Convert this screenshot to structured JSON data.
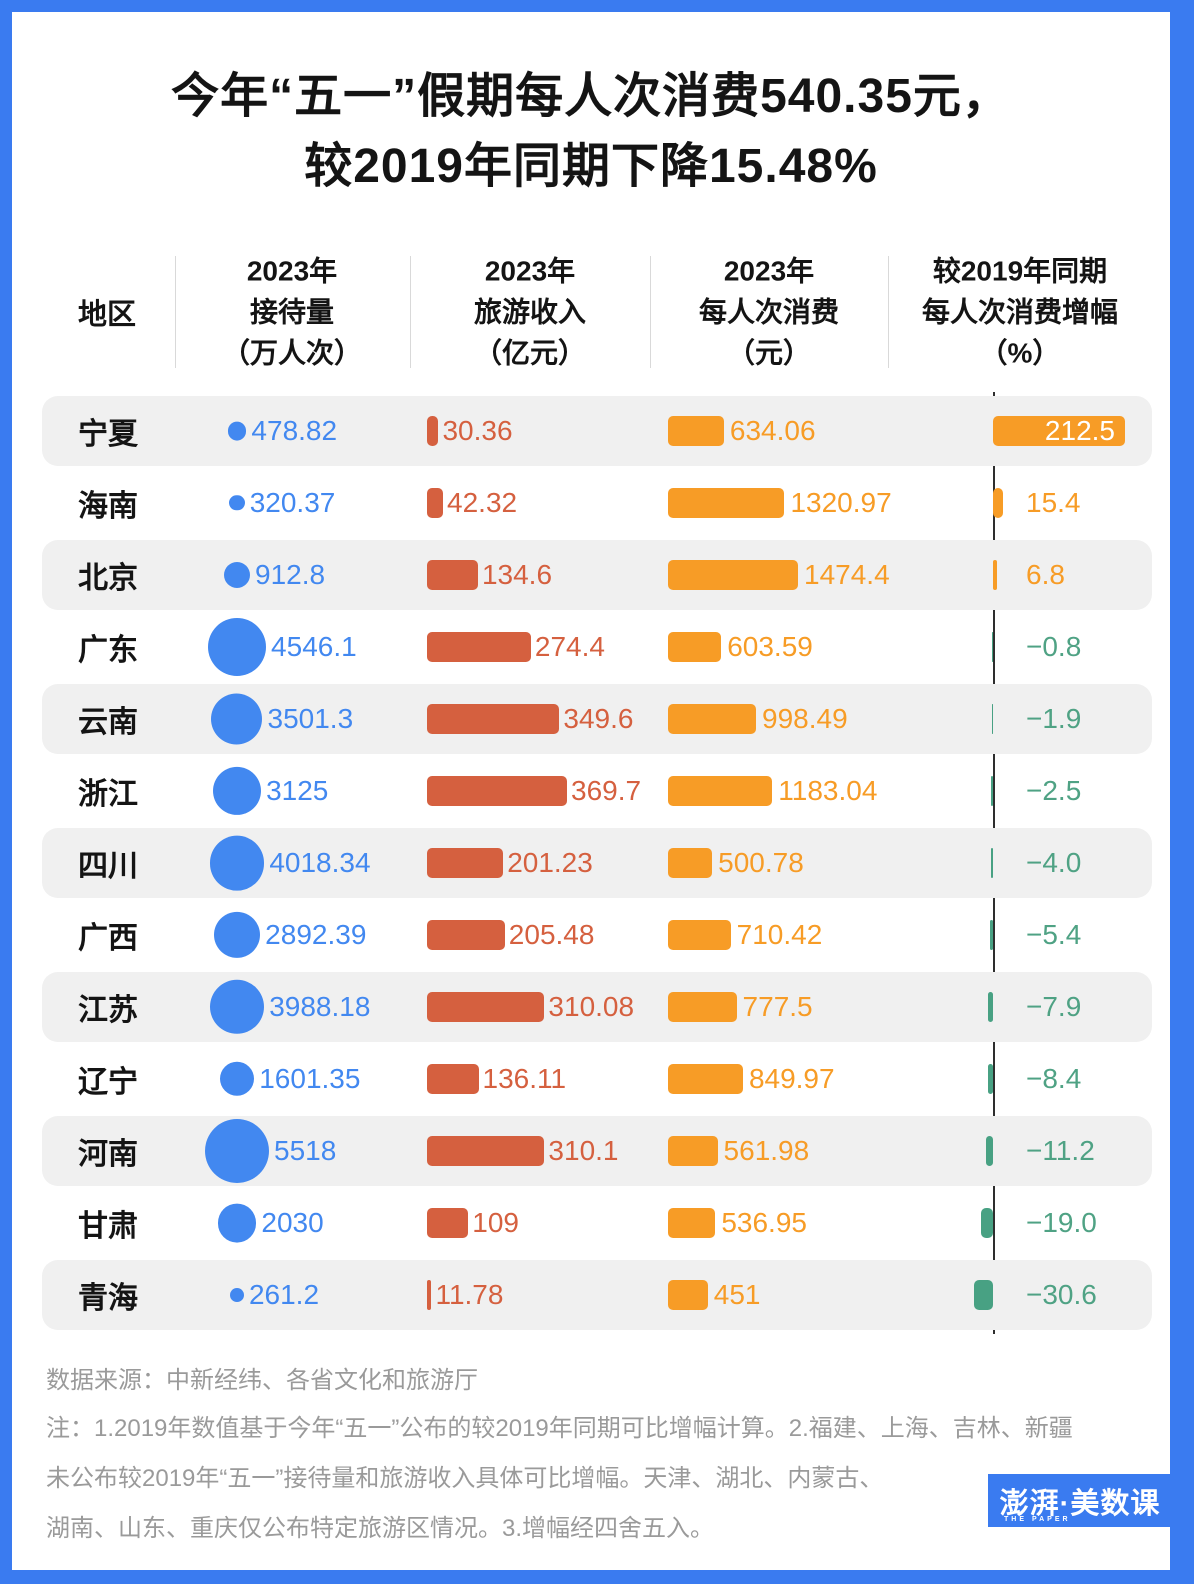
{
  "title": {
    "line1": "今年“五一”假期每人次消费540.35元，",
    "line2": "较2019年同期下降15.48%"
  },
  "table": {
    "region_header": "地区",
    "columns": [
      {
        "line1": "2023年",
        "line2": "接待量",
        "line3": "（万人次）"
      },
      {
        "line1": "2023年",
        "line2": "旅游收入",
        "line3": "（亿元）"
      },
      {
        "line1": "2023年",
        "line2": "每人次消费",
        "line3": "（元）"
      },
      {
        "line1": "较2019年同期",
        "line2": "每人次消费增幅",
        "line3": "（%）"
      }
    ],
    "rows": [
      {
        "region": "宁夏",
        "reception": 478.82,
        "reception_label": "478.82",
        "revenue": 30.36,
        "revenue_label": "30.36",
        "spend": 634.06,
        "spend_label": "634.06",
        "growth": 212.5,
        "growth_label": "212.5"
      },
      {
        "region": "海南",
        "reception": 320.37,
        "reception_label": "320.37",
        "revenue": 42.32,
        "revenue_label": "42.32",
        "spend": 1320.97,
        "spend_label": "1320.97",
        "growth": 15.4,
        "growth_label": "15.4"
      },
      {
        "region": "北京",
        "reception": 912.8,
        "reception_label": "912.8",
        "revenue": 134.6,
        "revenue_label": "134.6",
        "spend": 1474.4,
        "spend_label": "1474.4",
        "growth": 6.8,
        "growth_label": "6.8"
      },
      {
        "region": "广东",
        "reception": 4546.1,
        "reception_label": "4546.1",
        "revenue": 274.4,
        "revenue_label": "274.4",
        "spend": 603.59,
        "spend_label": "603.59",
        "growth": -0.8,
        "growth_label": "−0.8"
      },
      {
        "region": "云南",
        "reception": 3501.3,
        "reception_label": "3501.3",
        "revenue": 349.6,
        "revenue_label": "349.6",
        "spend": 998.49,
        "spend_label": "998.49",
        "growth": -1.9,
        "growth_label": "−1.9"
      },
      {
        "region": "浙江",
        "reception": 3125,
        "reception_label": "3125",
        "revenue": 369.7,
        "revenue_label": "369.7",
        "spend": 1183.04,
        "spend_label": "1183.04",
        "growth": -2.5,
        "growth_label": "−2.5"
      },
      {
        "region": "四川",
        "reception": 4018.34,
        "reception_label": "4018.34",
        "revenue": 201.23,
        "revenue_label": "201.23",
        "spend": 500.78,
        "spend_label": "500.78",
        "growth": -4.0,
        "growth_label": "−4.0"
      },
      {
        "region": "广西",
        "reception": 2892.39,
        "reception_label": "2892.39",
        "revenue": 205.48,
        "revenue_label": "205.48",
        "spend": 710.42,
        "spend_label": "710.42",
        "growth": -5.4,
        "growth_label": "−5.4"
      },
      {
        "region": "江苏",
        "reception": 3988.18,
        "reception_label": "3988.18",
        "revenue": 310.08,
        "revenue_label": "310.08",
        "spend": 777.5,
        "spend_label": "777.5",
        "growth": -7.9,
        "growth_label": "−7.9"
      },
      {
        "region": "辽宁",
        "reception": 1601.35,
        "reception_label": "1601.35",
        "revenue": 136.11,
        "revenue_label": "136.11",
        "spend": 849.97,
        "spend_label": "849.97",
        "growth": -8.4,
        "growth_label": "−8.4"
      },
      {
        "region": "河南",
        "reception": 5518,
        "reception_label": "5518",
        "revenue": 310.1,
        "revenue_label": "310.1",
        "spend": 561.98,
        "spend_label": "561.98",
        "growth": -11.2,
        "growth_label": "−11.2"
      },
      {
        "region": "甘肃",
        "reception": 2030,
        "reception_label": "2030",
        "revenue": 109,
        "revenue_label": "109",
        "spend": 536.95,
        "spend_label": "536.95",
        "growth": -19.0,
        "growth_label": "−19.0"
      },
      {
        "region": "青海",
        "reception": 261.2,
        "reception_label": "261.2",
        "revenue": 11.78,
        "revenue_label": "11.78",
        "spend": 451,
        "spend_label": "451",
        "growth": -30.6,
        "growth_label": "−30.6"
      }
    ]
  },
  "footer": {
    "source": "数据来源：中新经纬、各省文化和旅游厅",
    "note_line1": "注：1.2019年数值基于今年“五一”公布的较2019年同期可比增幅计算。2.福建、上海、吉林、新疆",
    "note_line2": "未公布较2019年“五一”接待量和旅游收入具体可比增幅。天津、湖北、内蒙古、",
    "note_line3": "湖南、山东、重庆仅公布特定旅游区情况。3.增幅经四舍五入。"
  },
  "logo": {
    "cn": "澎湃·美数课",
    "en": "THE PAPER"
  },
  "colors": {
    "frame_blue": "#3A7BF0",
    "circle_blue": "#4288F0",
    "revenue_red": "#D5603F",
    "spend_orange": "#F79C26",
    "growth_green": "#48A183",
    "growth_green_text": "#4FA284",
    "band_gray": "#F0F0F0",
    "axis_dark": "#2e2e2e",
    "note_gray": "#9A9A9A"
  },
  "chart_data": {
    "type": "bar",
    "title": "今年“五一”假期每人次消费540.35元，较2019年同期下降15.48%",
    "categories": [
      "宁夏",
      "海南",
      "北京",
      "广东",
      "云南",
      "浙江",
      "四川",
      "广西",
      "江苏",
      "辽宁",
      "河南",
      "甘肃",
      "青海"
    ],
    "series": [
      {
        "name": "2023年接待量（万人次）",
        "encoding": "circle-area",
        "values": [
          478.82,
          320.37,
          912.8,
          4546.1,
          3501.3,
          3125,
          4018.34,
          2892.39,
          3988.18,
          1601.35,
          5518,
          2030,
          261.2
        ]
      },
      {
        "name": "2023年旅游收入（亿元）",
        "encoding": "bar",
        "values": [
          30.36,
          42.32,
          134.6,
          274.4,
          349.6,
          369.7,
          201.23,
          205.48,
          310.08,
          136.11,
          310.1,
          109,
          11.78
        ]
      },
      {
        "name": "2023年每人次消费（元）",
        "encoding": "bar",
        "values": [
          634.06,
          1320.97,
          1474.4,
          603.59,
          998.49,
          1183.04,
          500.78,
          710.42,
          777.5,
          849.97,
          561.98,
          536.95,
          451
        ]
      },
      {
        "name": "较2019年同期每人次消费增幅（%）",
        "encoding": "diverging-bar",
        "values": [
          212.5,
          15.4,
          6.8,
          -0.8,
          -1.9,
          -2.5,
          -4.0,
          -5.4,
          -7.9,
          -8.4,
          -11.2,
          -19.0,
          -30.6
        ]
      }
    ],
    "legend_position": "none",
    "grid": false,
    "source": "数据来源：中新经纬、各省文化和旅游厅"
  }
}
